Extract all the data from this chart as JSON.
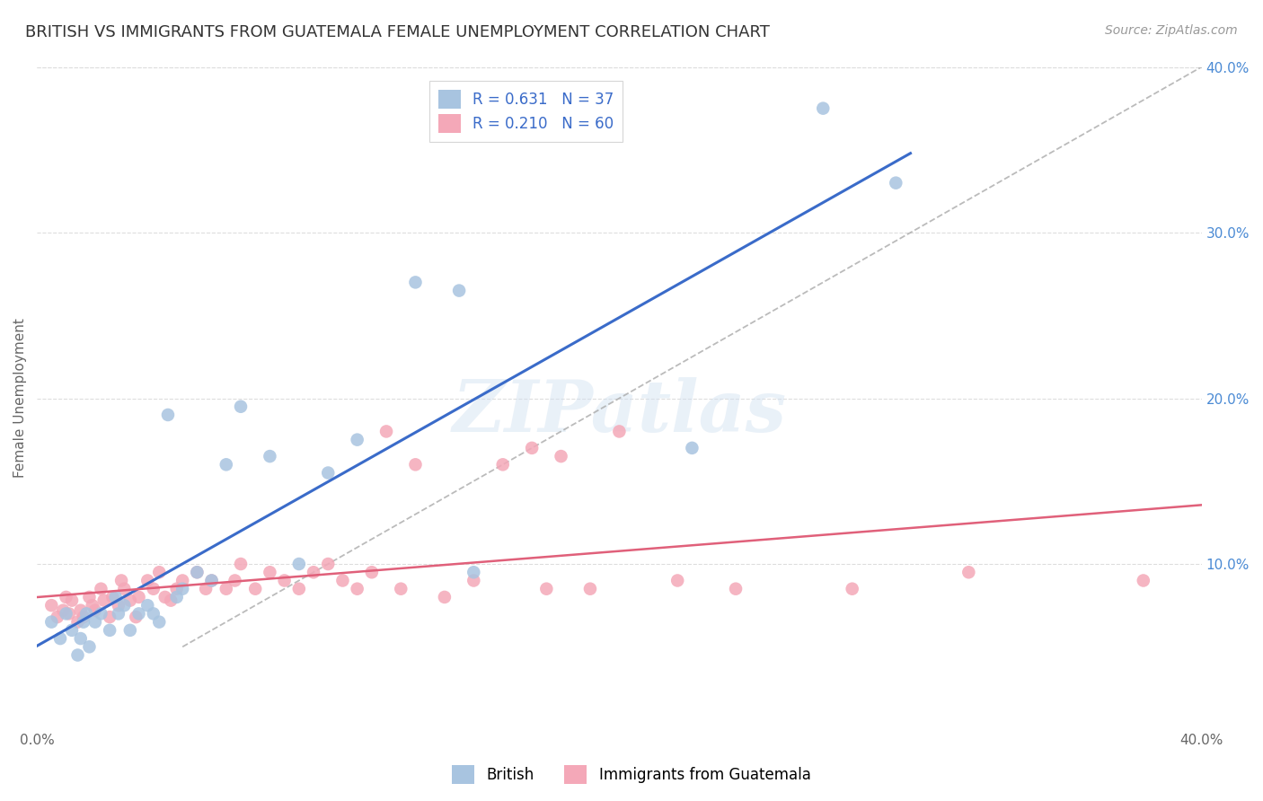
{
  "title": "BRITISH VS IMMIGRANTS FROM GUATEMALA FEMALE UNEMPLOYMENT CORRELATION CHART",
  "source": "Source: ZipAtlas.com",
  "ylabel": "Female Unemployment",
  "xlim": [
    0.0,
    0.4
  ],
  "ylim": [
    0.0,
    0.4
  ],
  "xticks": [
    0.0,
    0.4
  ],
  "xtick_labels": [
    "0.0%",
    "40.0%"
  ],
  "yticks_right": [
    0.1,
    0.2,
    0.3,
    0.4
  ],
  "ytick_labels_right": [
    "10.0%",
    "20.0%",
    "30.0%",
    "40.0%"
  ],
  "legend_labels": [
    "British",
    "Immigrants from Guatemala"
  ],
  "R_british": 0.631,
  "N_british": 37,
  "R_guatemala": 0.21,
  "N_guatemala": 60,
  "british_color": "#a8c4e0",
  "guatemala_color": "#f4a8b8",
  "british_line_color": "#3a6bc9",
  "guatemala_line_color": "#e0607a",
  "diagonal_color": "#aaaaaa",
  "watermark_text": "ZIPatlas",
  "british_x": [
    0.005,
    0.008,
    0.01,
    0.012,
    0.014,
    0.015,
    0.016,
    0.017,
    0.018,
    0.02,
    0.022,
    0.025,
    0.027,
    0.028,
    0.03,
    0.032,
    0.035,
    0.038,
    0.04,
    0.042,
    0.045,
    0.048,
    0.05,
    0.055,
    0.06,
    0.065,
    0.07,
    0.08,
    0.09,
    0.1,
    0.11,
    0.13,
    0.145,
    0.15,
    0.225,
    0.27,
    0.295
  ],
  "british_y": [
    0.065,
    0.055,
    0.07,
    0.06,
    0.045,
    0.055,
    0.065,
    0.07,
    0.05,
    0.065,
    0.07,
    0.06,
    0.08,
    0.07,
    0.075,
    0.06,
    0.07,
    0.075,
    0.07,
    0.065,
    0.19,
    0.08,
    0.085,
    0.095,
    0.09,
    0.16,
    0.195,
    0.165,
    0.1,
    0.155,
    0.175,
    0.27,
    0.265,
    0.095,
    0.17,
    0.375,
    0.33
  ],
  "guatemala_x": [
    0.005,
    0.007,
    0.009,
    0.01,
    0.011,
    0.012,
    0.014,
    0.015,
    0.016,
    0.018,
    0.019,
    0.02,
    0.022,
    0.023,
    0.025,
    0.026,
    0.028,
    0.029,
    0.03,
    0.032,
    0.034,
    0.035,
    0.038,
    0.04,
    0.042,
    0.044,
    0.046,
    0.048,
    0.05,
    0.055,
    0.058,
    0.06,
    0.065,
    0.068,
    0.07,
    0.075,
    0.08,
    0.085,
    0.09,
    0.095,
    0.1,
    0.105,
    0.11,
    0.115,
    0.12,
    0.125,
    0.13,
    0.14,
    0.15,
    0.16,
    0.17,
    0.175,
    0.18,
    0.19,
    0.2,
    0.22,
    0.24,
    0.28,
    0.32,
    0.38
  ],
  "guatemala_y": [
    0.075,
    0.068,
    0.072,
    0.08,
    0.07,
    0.078,
    0.065,
    0.072,
    0.068,
    0.08,
    0.075,
    0.072,
    0.085,
    0.078,
    0.068,
    0.08,
    0.075,
    0.09,
    0.085,
    0.078,
    0.068,
    0.08,
    0.09,
    0.085,
    0.095,
    0.08,
    0.078,
    0.085,
    0.09,
    0.095,
    0.085,
    0.09,
    0.085,
    0.09,
    0.1,
    0.085,
    0.095,
    0.09,
    0.085,
    0.095,
    0.1,
    0.09,
    0.085,
    0.095,
    0.18,
    0.085,
    0.16,
    0.08,
    0.09,
    0.16,
    0.17,
    0.085,
    0.165,
    0.085,
    0.18,
    0.09,
    0.085,
    0.085,
    0.095,
    0.09
  ],
  "background_color": "#ffffff",
  "grid_color": "#dddddd",
  "title_fontsize": 13,
  "source_fontsize": 10,
  "axis_tick_fontsize": 11,
  "ylabel_fontsize": 11
}
